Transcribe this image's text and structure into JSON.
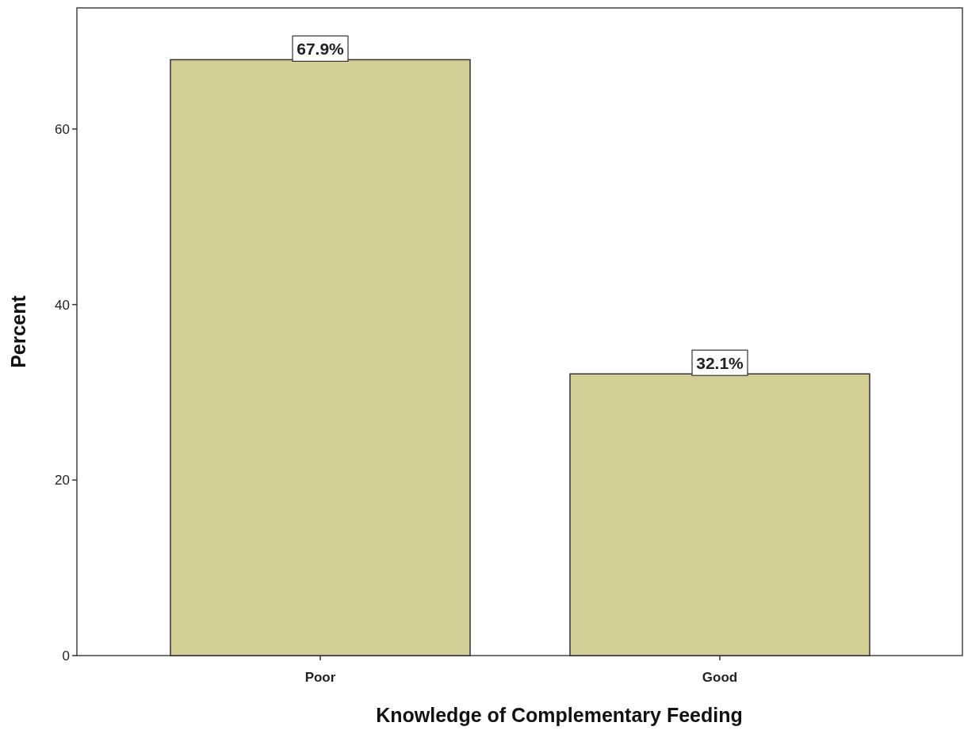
{
  "chart_data": {
    "type": "bar",
    "xlabel": "Knowledge of Complementary Feeding",
    "ylabel": "Percent",
    "categories": [
      "Poor",
      "Good"
    ],
    "values": [
      67.9,
      32.1
    ],
    "value_labels": [
      "67.9%",
      "32.1%"
    ],
    "color": "#d3cd96",
    "ylim": [
      0,
      73.8
    ],
    "yticks": [
      0,
      20,
      40,
      60
    ],
    "grid": false
  }
}
